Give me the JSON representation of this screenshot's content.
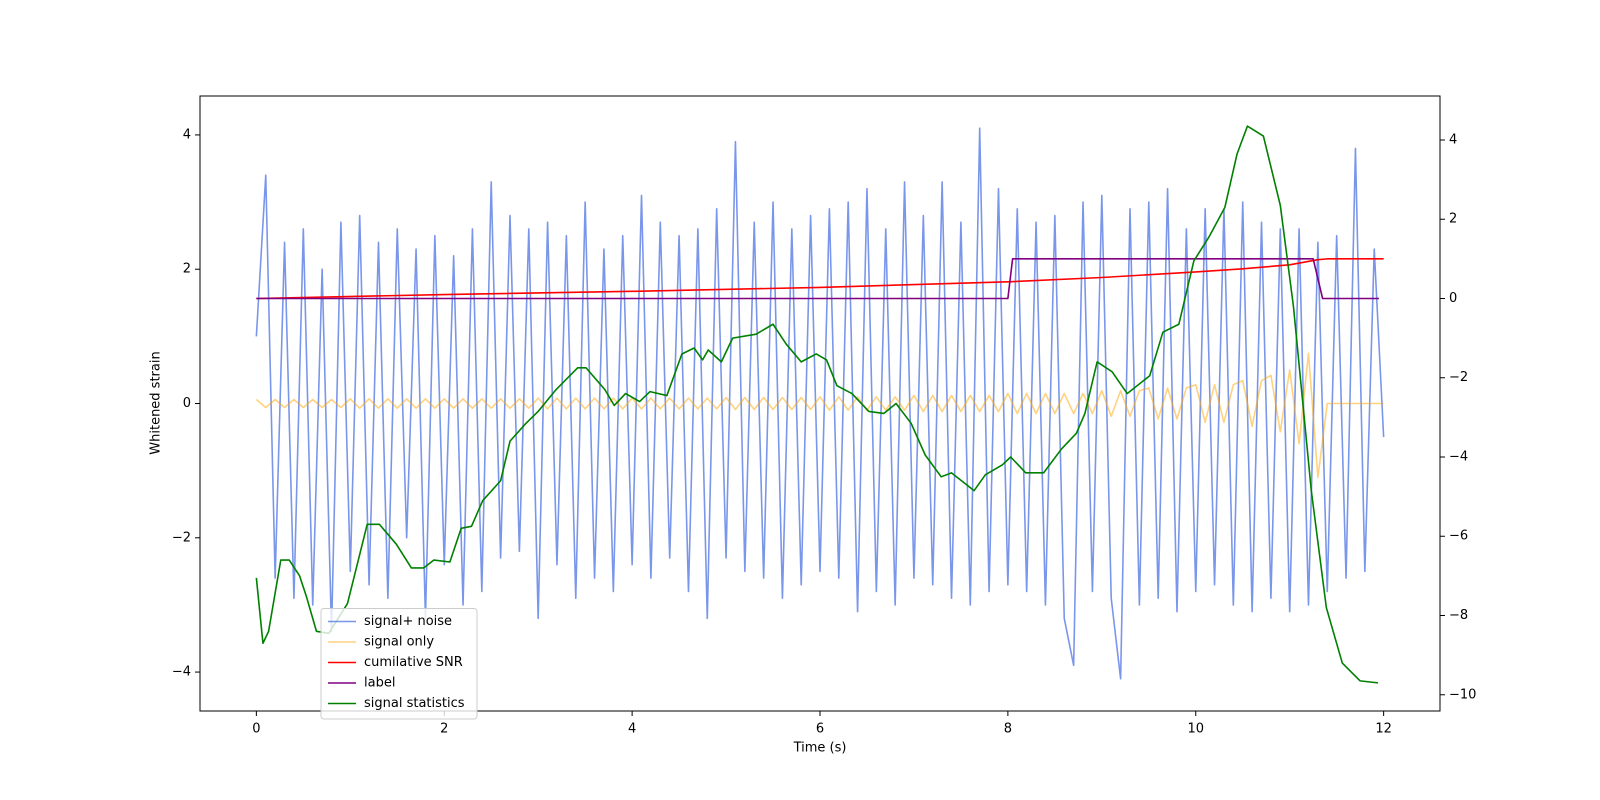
{
  "chart_data": {
    "type": "line",
    "xlabel": "Time (s)",
    "ylabel": "Whitened strain",
    "xlim": [
      -0.6,
      12.6
    ],
    "xticks": [
      0,
      2,
      4,
      6,
      8,
      10,
      12
    ],
    "ylim": [
      -4.58,
      4.58
    ],
    "yticks": [
      {
        "value": -4,
        "label": "−4"
      },
      {
        "value": -2,
        "label": "−2"
      },
      0,
      2,
      4
    ],
    "y2lim": [
      -10.41,
      5.11
    ],
    "y2ticks": [
      {
        "value": -10,
        "label": "−10"
      },
      {
        "value": -8,
        "label": "−8"
      },
      {
        "value": -6,
        "label": "−6"
      },
      {
        "value": -4,
        "label": "−4"
      },
      {
        "value": -2,
        "label": "−2"
      },
      0,
      2,
      4
    ],
    "legend": "lower left",
    "x": [
      0,
      0.1,
      0.2,
      0.3,
      0.4,
      0.5,
      0.6,
      0.7,
      0.8,
      0.9,
      1,
      1.1,
      1.2,
      1.3,
      1.4,
      1.5,
      1.6,
      1.7,
      1.8,
      1.9,
      2,
      2.1,
      2.2,
      2.3,
      2.4,
      2.5,
      2.6,
      2.7,
      2.8,
      2.9,
      3,
      3.1,
      3.2,
      3.3,
      3.4,
      3.5,
      3.6,
      3.7,
      3.8,
      3.9,
      4,
      4.1,
      4.2,
      4.3,
      4.4,
      4.5,
      4.6,
      4.7,
      4.8,
      4.9,
      5,
      5.1,
      5.2,
      5.3,
      5.4,
      5.5,
      5.6,
      5.7,
      5.8,
      5.9,
      6,
      6.1,
      6.2,
      6.3,
      6.4,
      6.5,
      6.6,
      6.7,
      6.8,
      6.9,
      7,
      7.1,
      7.2,
      7.3,
      7.4,
      7.5,
      7.6,
      7.7,
      7.8,
      7.9,
      8,
      8.1,
      8.2,
      8.3,
      8.4,
      8.5,
      8.6,
      8.7,
      8.8,
      8.9,
      9,
      9.1,
      9.2,
      9.3,
      9.4,
      9.5,
      9.6,
      9.7,
      9.8,
      9.9,
      10,
      10.1,
      10.2,
      10.3,
      10.4,
      10.5,
      10.6,
      10.7,
      10.8,
      10.9,
      11,
      11.1,
      11.2,
      11.3,
      11.4,
      11.5,
      11.6,
      11.7,
      11.8,
      11.9,
      12
    ],
    "series": [
      {
        "name": "signal+ noise",
        "color": "royalblue",
        "alpha": 0.7,
        "values": [
          1.0,
          3.4,
          -2.6,
          2.4,
          -2.9,
          2.6,
          -3.0,
          2.0,
          -3.4,
          2.7,
          -2.5,
          2.8,
          -2.7,
          2.4,
          -2.9,
          2.6,
          -2.0,
          2.3,
          -3.2,
          2.5,
          -2.4,
          2.2,
          -3.0,
          2.6,
          -2.8,
          3.3,
          -2.3,
          2.8,
          -2.2,
          2.6,
          -3.2,
          2.7,
          -2.4,
          2.5,
          -2.9,
          3.0,
          -2.6,
          2.3,
          -2.8,
          2.5,
          -2.4,
          3.1,
          -2.6,
          2.7,
          -2.3,
          2.5,
          -2.8,
          2.6,
          -3.2,
          2.9,
          -2.3,
          3.9,
          -2.5,
          2.7,
          -2.6,
          3.0,
          -2.9,
          2.6,
          -2.7,
          2.8,
          -2.5,
          2.9,
          -2.6,
          3.0,
          -3.1,
          3.2,
          -2.8,
          2.6,
          -3.0,
          3.3,
          -2.6,
          2.8,
          -2.7,
          3.3,
          -2.9,
          2.7,
          -3.0,
          4.1,
          -2.8,
          3.2,
          -2.7,
          2.9,
          -2.8,
          2.7,
          -3.0,
          2.8,
          -3.2,
          -3.9,
          3.0,
          -2.8,
          3.1,
          -2.9,
          -4.1,
          2.9,
          -3.0,
          3.0,
          -2.9,
          3.2,
          -3.1,
          2.6,
          -2.8,
          2.9,
          -2.7,
          2.9,
          -3.0,
          3.0,
          -3.1,
          2.7,
          -2.9,
          2.6,
          -3.1,
          2.6,
          -3.0,
          2.4,
          -2.8,
          2.5,
          -2.6,
          3.8,
          -2.5,
          2.3,
          -0.5
        ]
      },
      {
        "name": "signal only",
        "color": "orange",
        "alpha": 0.5,
        "values": [
          0.06,
          -0.06,
          0.06,
          -0.06,
          0.06,
          -0.06,
          0.06,
          -0.06,
          0.06,
          -0.06,
          0.07,
          -0.07,
          0.07,
          -0.07,
          0.07,
          -0.07,
          0.07,
          -0.07,
          0.07,
          -0.07,
          0.07,
          -0.07,
          0.07,
          -0.07,
          0.07,
          -0.07,
          0.07,
          -0.07,
          0.07,
          -0.07,
          0.08,
          -0.08,
          0.08,
          -0.08,
          0.08,
          -0.08,
          0.08,
          -0.08,
          0.08,
          -0.08,
          0.08,
          -0.08,
          0.08,
          -0.08,
          0.08,
          -0.08,
          0.08,
          -0.08,
          0.08,
          -0.08,
          0.09,
          -0.09,
          0.09,
          -0.09,
          0.09,
          -0.09,
          0.09,
          -0.09,
          0.09,
          -0.09,
          0.1,
          -0.1,
          0.1,
          -0.1,
          0.1,
          -0.1,
          0.1,
          -0.1,
          0.1,
          -0.1,
          0.12,
          -0.12,
          0.12,
          -0.12,
          0.12,
          -0.12,
          0.12,
          -0.12,
          0.12,
          -0.12,
          0.15,
          -0.15,
          0.15,
          -0.15,
          0.15,
          -0.15,
          0.15,
          -0.15,
          0.15,
          -0.15,
          0.19,
          -0.19,
          0.19,
          -0.19,
          0.19,
          0.23,
          -0.23,
          0.23,
          -0.23,
          0.23,
          0.28,
          -0.28,
          0.28,
          -0.28,
          0.28,
          0.34,
          -0.34,
          0.34,
          0.42,
          -0.42,
          0.5,
          -0.6,
          0.75,
          -1.1,
          0,
          0,
          0,
          0,
          0,
          0,
          0
        ]
      },
      {
        "name": "cumilative SNR",
        "color": "red",
        "axis": "y2",
        "x": [
          0,
          2,
          4,
          6,
          8,
          9,
          10,
          10.5,
          11,
          11.3,
          11.4,
          12
        ],
        "values": [
          0,
          0.1,
          0.18,
          0.28,
          0.42,
          0.53,
          0.67,
          0.75,
          0.85,
          0.98,
          1.0,
          1.0
        ]
      },
      {
        "name": "label",
        "color": "purple",
        "axis": "y2",
        "x": [
          0,
          8.0,
          8.05,
          11.25,
          11.35,
          11.95
        ],
        "values": [
          0,
          0,
          1,
          1,
          0,
          0
        ]
      },
      {
        "name": "signal statistics",
        "color": "green",
        "axis": "y2",
        "x": [
          0,
          0.07,
          0.13,
          0.26,
          0.35,
          0.46,
          0.53,
          0.64,
          0.77,
          0.97,
          1.18,
          1.31,
          1.49,
          1.65,
          1.78,
          1.89,
          2.06,
          2.18,
          2.29,
          2.41,
          2.6,
          2.7,
          2.87,
          3.0,
          3.19,
          3.42,
          3.51,
          3.71,
          3.81,
          3.93,
          4.08,
          4.19,
          4.37,
          4.53,
          4.66,
          4.75,
          4.81,
          4.95,
          5.07,
          5.32,
          5.5,
          5.64,
          5.8,
          5.96,
          6.07,
          6.18,
          6.34,
          6.52,
          6.68,
          6.81,
          6.97,
          7.12,
          7.29,
          7.4,
          7.64,
          7.76,
          7.94,
          8.03,
          8.19,
          8.38,
          8.57,
          8.73,
          8.82,
          8.95,
          9.11,
          9.27,
          9.51,
          9.65,
          9.82,
          9.98,
          10.14,
          10.31,
          10.44,
          10.55,
          10.72,
          10.9,
          11.04,
          11.23,
          11.39,
          11.56,
          11.75,
          11.94
        ],
        "values": [
          -7.05,
          -8.7,
          -8.4,
          -6.6,
          -6.6,
          -7.0,
          -7.5,
          -8.4,
          -8.45,
          -7.7,
          -5.7,
          -5.7,
          -6.2,
          -6.8,
          -6.8,
          -6.6,
          -6.65,
          -5.8,
          -5.75,
          -5.1,
          -4.6,
          -3.6,
          -3.15,
          -2.85,
          -2.3,
          -1.75,
          -1.75,
          -2.3,
          -2.7,
          -2.4,
          -2.6,
          -2.35,
          -2.45,
          -1.4,
          -1.25,
          -1.55,
          -1.3,
          -1.6,
          -1.0,
          -0.9,
          -0.65,
          -1.15,
          -1.6,
          -1.4,
          -1.55,
          -2.2,
          -2.4,
          -2.85,
          -2.9,
          -2.65,
          -3.15,
          -3.95,
          -4.5,
          -4.4,
          -4.85,
          -4.45,
          -4.2,
          -4.0,
          -4.4,
          -4.4,
          -3.8,
          -3.4,
          -2.9,
          -1.6,
          -1.85,
          -2.4,
          -1.95,
          -0.85,
          -0.65,
          0.95,
          1.55,
          2.3,
          3.65,
          4.35,
          4.1,
          2.35,
          -0.2,
          -4.85,
          -7.8,
          -9.2,
          -9.65,
          -9.7
        ]
      }
    ]
  }
}
